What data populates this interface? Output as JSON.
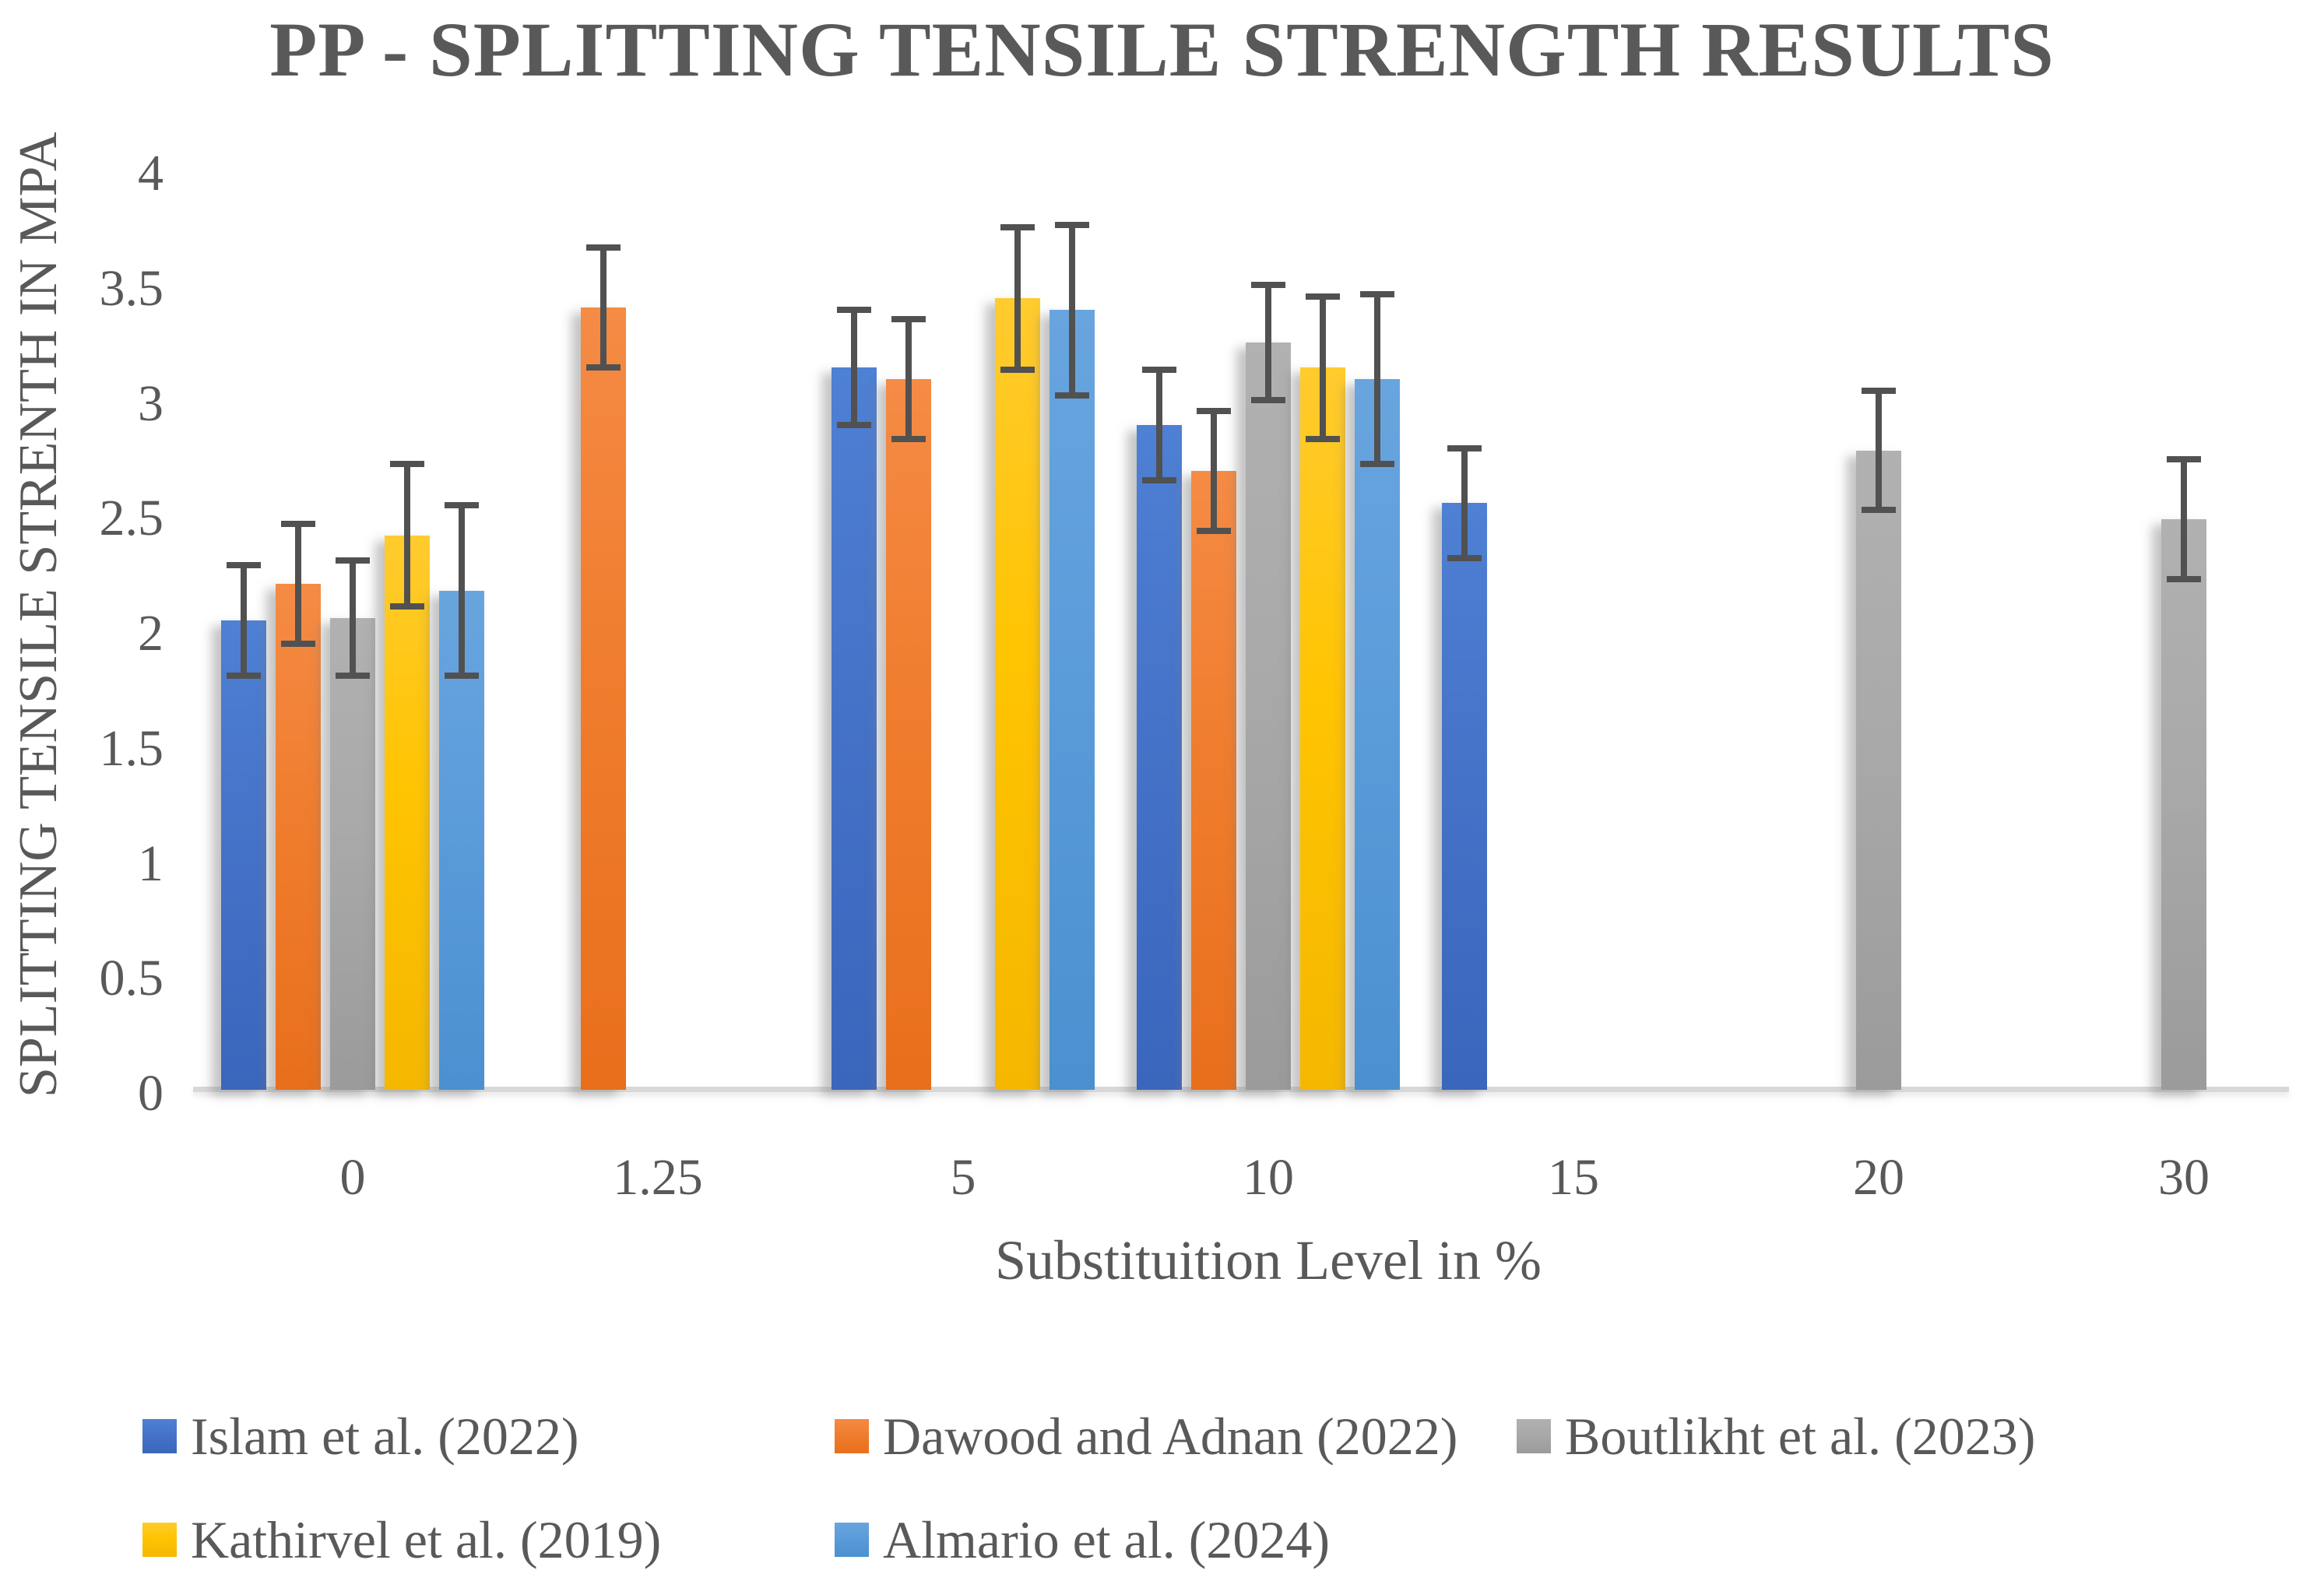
{
  "chart_data": {
    "type": "bar",
    "title": "PP - SPLITTING TENSILE STRENGTH RESULTS",
    "xlabel": "Substituition Level in %",
    "ylabel": "SPLITTING TENSILE STRENTH IN MPA",
    "ylim": [
      0,
      4
    ],
    "ytick_step": 0.5,
    "yticks": [
      "0",
      "0.5",
      "1",
      "1.5",
      "2",
      "2.5",
      "3",
      "3.5",
      "4"
    ],
    "categories": [
      "0",
      "1.25",
      "5",
      "10",
      "15",
      "20",
      "30"
    ],
    "grid": false,
    "legend_position": "bottom",
    "error_bars": true,
    "text_color": "#595959",
    "error_bar_color": "#515151",
    "axis_line_color": "#d8d8d8",
    "series": [
      {
        "name": "Islam et al. (2022)",
        "color": "#4573C8",
        "color_light": "#4E80D4",
        "color_dark": "#3A66BC",
        "points": [
          {
            "category": "0",
            "value": 2.04,
            "error": 0.24
          },
          {
            "category": "5",
            "value": 3.14,
            "error": 0.25
          },
          {
            "category": "10",
            "value": 2.89,
            "error": 0.24
          },
          {
            "category": "15",
            "value": 2.55,
            "error": 0.24
          }
        ]
      },
      {
        "name": "Dawood and Adnan (2022)",
        "color": "#F07D2E",
        "color_light": "#F58B45",
        "color_dark": "#E86F1C",
        "points": [
          {
            "category": "0",
            "value": 2.2,
            "error": 0.26
          },
          {
            "category": "1.25",
            "value": 3.4,
            "error": 0.26
          },
          {
            "category": "5",
            "value": 3.09,
            "error": 0.26
          },
          {
            "category": "10",
            "value": 2.69,
            "error": 0.26
          }
        ]
      },
      {
        "name": "Boutlikht et al. (2023)",
        "color": "#A9A9A9",
        "color_light": "#B1B1B1",
        "color_dark": "#9B9B9B",
        "points": [
          {
            "category": "0",
            "value": 2.05,
            "error": 0.25
          },
          {
            "category": "10",
            "value": 3.25,
            "error": 0.25
          },
          {
            "category": "20",
            "value": 2.78,
            "error": 0.26
          },
          {
            "category": "30",
            "value": 2.48,
            "error": 0.26
          }
        ]
      },
      {
        "name": "Kathirvel et al. (2019)",
        "color": "#FFC402",
        "color_light": "#FFCB2E",
        "color_dark": "#F5B700",
        "points": [
          {
            "category": "0",
            "value": 2.41,
            "error": 0.31
          },
          {
            "category": "5",
            "value": 3.44,
            "error": 0.31
          },
          {
            "category": "10",
            "value": 3.14,
            "error": 0.31
          }
        ]
      },
      {
        "name": "Almario et al. (2024)",
        "color": "#5B9CDA",
        "color_light": "#68A5DF",
        "color_dark": "#4B90D0",
        "points": [
          {
            "category": "0",
            "value": 2.17,
            "error": 0.37
          },
          {
            "category": "5",
            "value": 3.39,
            "error": 0.37
          },
          {
            "category": "10",
            "value": 3.09,
            "error": 0.37
          }
        ]
      }
    ]
  }
}
